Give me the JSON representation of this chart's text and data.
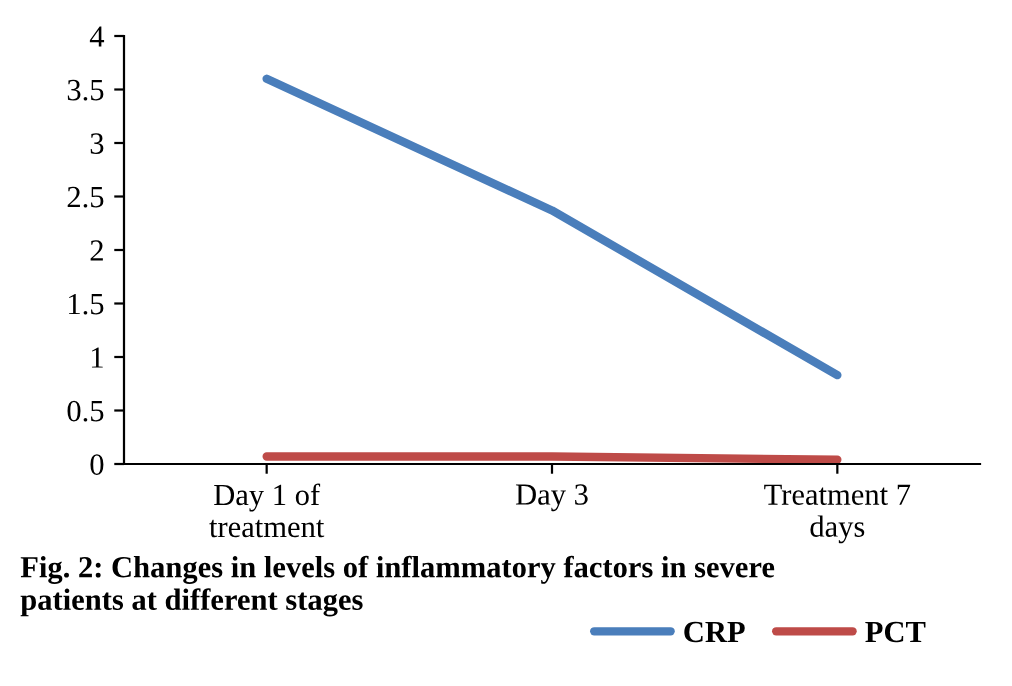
{
  "chart_data": {
    "type": "line",
    "categories": [
      "Day 1 of\ntreatment",
      "Day 3",
      "Treatment 7\ndays"
    ],
    "series": [
      {
        "name": "CRP",
        "color": "#4a7ebb",
        "values": [
          3.6,
          2.37,
          0.83
        ]
      },
      {
        "name": "PCT",
        "color": "#be4b48",
        "values": [
          0.07,
          0.07,
          0.04
        ]
      }
    ],
    "ylim": [
      0,
      4
    ],
    "yticks": [
      0,
      0.5,
      1,
      1.5,
      2,
      2.5,
      3,
      3.5,
      4
    ],
    "grid": false,
    "legend": "bottom",
    "marker": "none",
    "line_style": "solid",
    "annotations": [
      "Fig. 2: Changes in levels of inflammatory factors in severe\npatients at different stages"
    ]
  }
}
